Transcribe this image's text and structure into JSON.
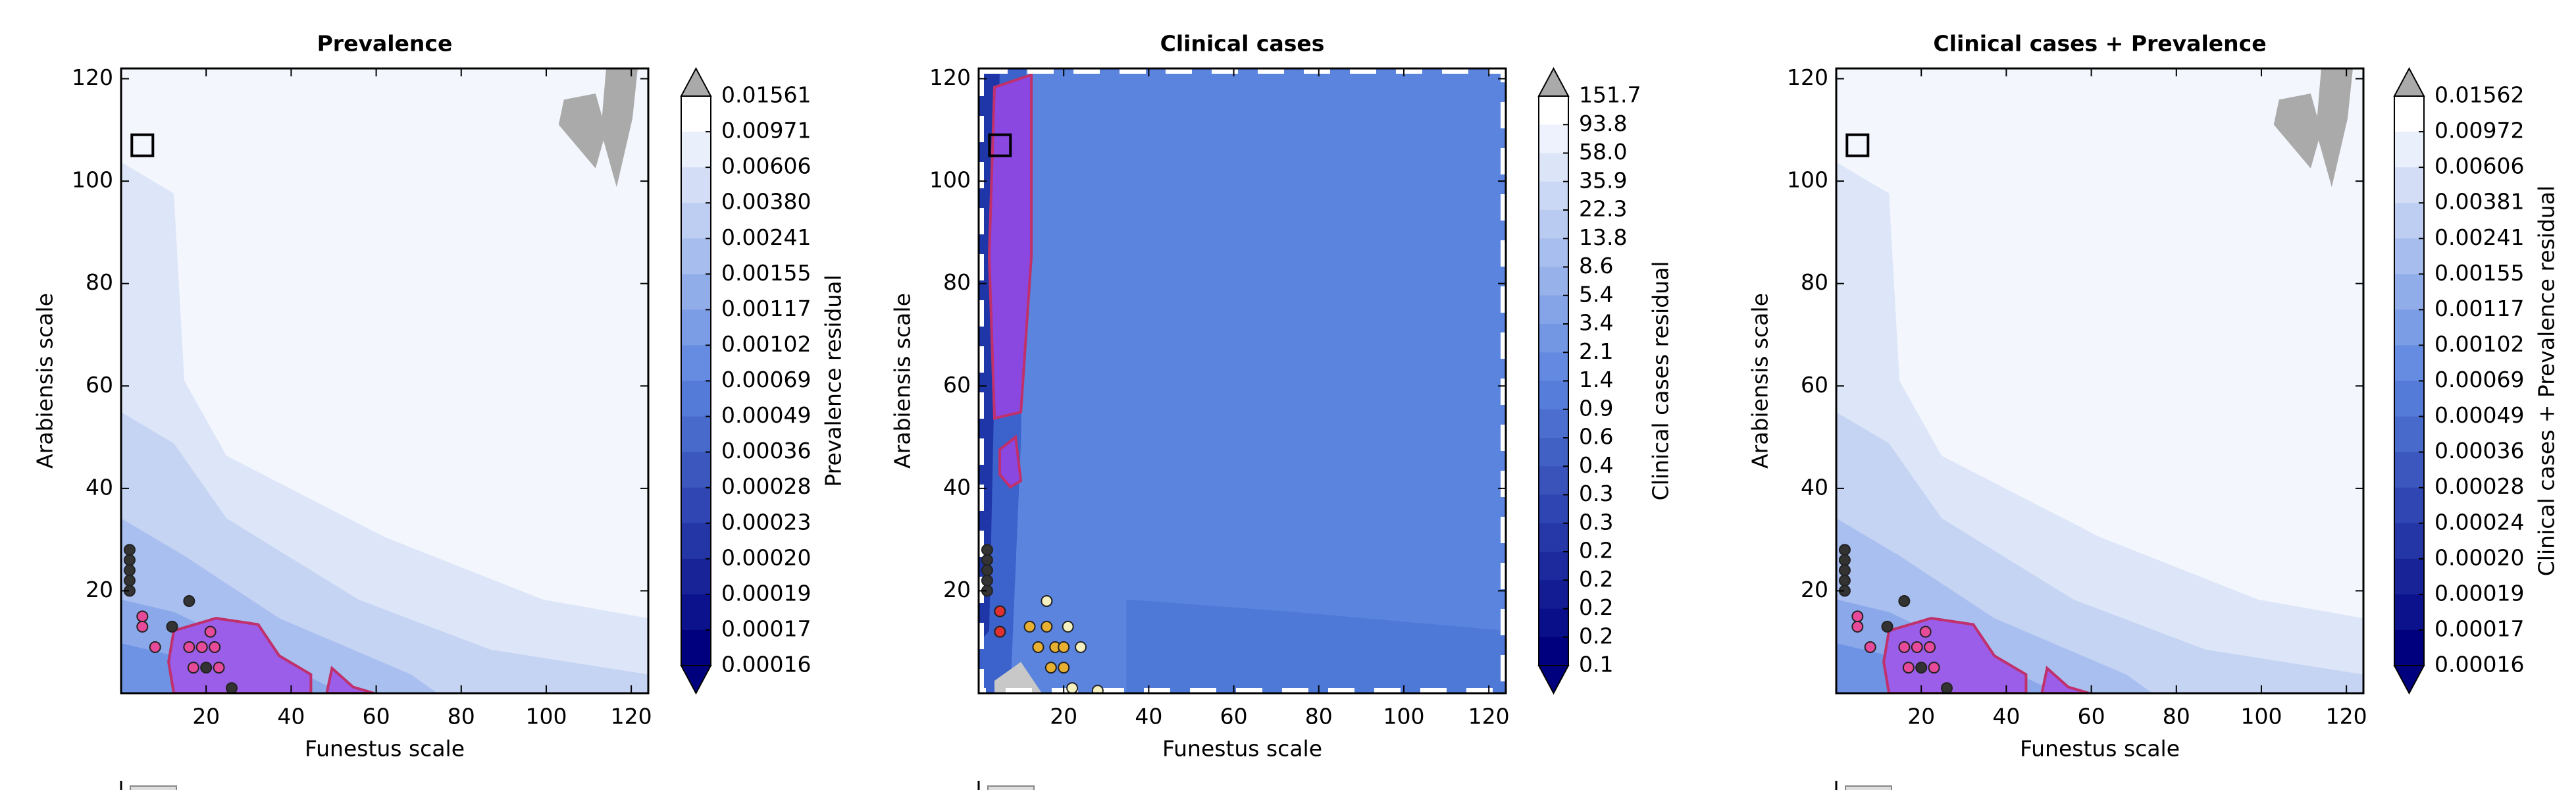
{
  "chart_data": [
    {
      "type": "contour",
      "title": "Prevalence",
      "xlabel": "Funestus scale",
      "ylabel": "Arabiensis scale",
      "xlim": [
        0,
        124
      ],
      "ylim": [
        0,
        122
      ],
      "xticks": [
        20,
        40,
        60,
        80,
        100,
        120
      ],
      "yticks": [
        20,
        40,
        60,
        80,
        100,
        120
      ],
      "colorbar": {
        "label": "Prevalence residual",
        "colors": [
          "#ffffff",
          "#5a84de",
          "#00007f"
        ],
        "over_color": "#aaaaaa",
        "under_color": "#00007f",
        "levels": [
          0.01561,
          0.00971,
          0.00606,
          {
            "value": 0.0038,
            "label": "0.00380"
          },
          0.00241,
          0.00155,
          0.00117,
          0.00102,
          0.00069,
          0.00049,
          0.00036,
          0.00028,
          0.00023,
          {
            "value": 0.0002,
            "label": "0.00020"
          },
          0.00019,
          0.00017,
          0.00016
        ]
      },
      "marker": {
        "x": 5,
        "y": 107
      },
      "points": [
        {
          "color": "#333333",
          "x": [
            2,
            2,
            2,
            2,
            2,
            12,
            16,
            20,
            26
          ],
          "y": [
            28,
            26,
            24,
            22,
            20,
            13,
            18,
            5,
            1
          ]
        },
        {
          "color": "#e84a9a",
          "x": [
            5,
            5,
            8,
            16,
            19,
            22,
            17,
            23,
            21
          ],
          "y": [
            15,
            13,
            9,
            9,
            9,
            9,
            5,
            5,
            12
          ]
        }
      ]
    },
    {
      "type": "contour",
      "title": "Clinical cases",
      "xlabel": "Funestus scale",
      "ylabel": "Arabiensis scale",
      "xlim": [
        0,
        124
      ],
      "ylim": [
        0,
        122
      ],
      "xticks": [
        20,
        40,
        60,
        80,
        100,
        120
      ],
      "yticks": [
        20,
        40,
        60,
        80,
        100,
        120
      ],
      "colorbar": {
        "label": "Clinical cases residual",
        "colors": [
          "#ffffff",
          "#5a84de",
          "#00007f"
        ],
        "over_color": "#aaaaaa",
        "under_color": "#00007f",
        "levels": [
          151.7,
          93.8,
          {
            "value": 58,
            "label": "58.0"
          },
          35.9,
          22.3,
          13.8,
          8.6,
          5.4,
          3.4,
          2.1,
          1.4,
          0.9,
          0.6,
          0.4,
          0.3,
          0.3,
          0.2,
          0.2,
          0.2,
          0.2,
          0.1
        ]
      },
      "marker": {
        "x": 5,
        "y": 107
      },
      "points": [
        {
          "color": "#333333",
          "x": [
            2,
            2,
            2,
            2,
            2
          ],
          "y": [
            28,
            26,
            24,
            22,
            20
          ]
        },
        {
          "color": "#e03030",
          "x": [
            5,
            5
          ],
          "y": [
            16,
            12
          ]
        },
        {
          "color": "#e8b030",
          "x": [
            12,
            16,
            14,
            18,
            20,
            17,
            20
          ],
          "y": [
            13,
            13,
            9,
            9,
            9,
            5,
            5
          ]
        },
        {
          "color": "#f4f0c0",
          "x": [
            16,
            21,
            24,
            22,
            28
          ],
          "y": [
            18,
            13,
            9,
            1,
            0.5
          ]
        }
      ]
    },
    {
      "type": "contour",
      "title": "Clinical cases + Prevalence",
      "xlabel": "Funestus scale",
      "ylabel": "Arabiensis scale",
      "xlim": [
        0,
        124
      ],
      "ylim": [
        0,
        122
      ],
      "xticks": [
        20,
        40,
        60,
        80,
        100,
        120
      ],
      "yticks": [
        20,
        40,
        60,
        80,
        100,
        120
      ],
      "colorbar": {
        "label": "Clinical cases + Prevalence residual",
        "colors": [
          "#ffffff",
          "#5a84de",
          "#00007f"
        ],
        "over_color": "#aaaaaa",
        "under_color": "#00007f",
        "levels": [
          0.01562,
          0.00972,
          0.00606,
          0.00381,
          0.00241,
          0.00155,
          0.00117,
          0.00102,
          0.00069,
          0.00049,
          0.00036,
          0.00028,
          0.00024,
          {
            "value": 0.0002,
            "label": "0.00020"
          },
          0.00019,
          0.00017,
          0.00016
        ]
      },
      "marker": {
        "x": 5,
        "y": 107
      },
      "points": [
        {
          "color": "#333333",
          "x": [
            2,
            2,
            2,
            2,
            2,
            12,
            16,
            20,
            26
          ],
          "y": [
            28,
            26,
            24,
            22,
            20,
            13,
            18,
            5,
            1
          ]
        },
        {
          "color": "#e84a9a",
          "x": [
            5,
            5,
            8,
            16,
            19,
            22,
            17,
            23,
            21
          ],
          "y": [
            15,
            13,
            9,
            9,
            9,
            9,
            5,
            5,
            12
          ]
        }
      ]
    }
  ]
}
